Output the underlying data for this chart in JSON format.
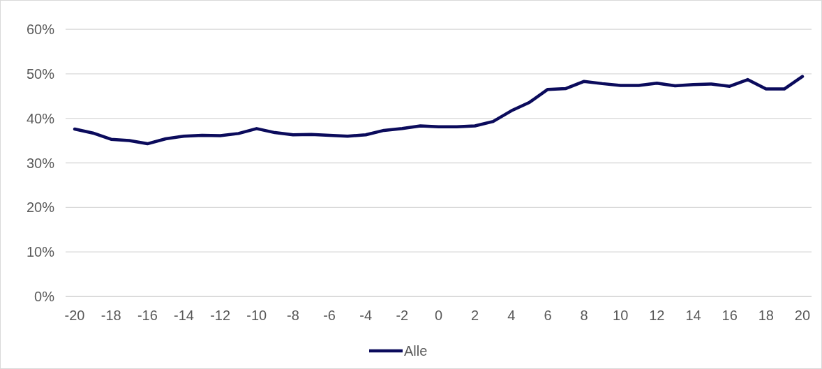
{
  "chart_data": {
    "type": "line",
    "x": [
      -20,
      -19,
      -18,
      -17,
      -16,
      -15,
      -14,
      -13,
      -12,
      -11,
      -10,
      -9,
      -8,
      -7,
      -6,
      -5,
      -4,
      -3,
      -2,
      -1,
      0,
      1,
      2,
      3,
      4,
      5,
      6,
      7,
      8,
      9,
      10,
      11,
      12,
      13,
      14,
      15,
      16,
      17,
      18,
      19,
      20
    ],
    "series": [
      {
        "name": "Alle",
        "color": "#0b0b5c",
        "values": [
          37.6,
          36.7,
          35.3,
          35.0,
          34.3,
          35.4,
          36.0,
          36.2,
          36.1,
          36.6,
          37.7,
          36.8,
          36.3,
          36.4,
          36.2,
          36.0,
          36.3,
          37.3,
          37.7,
          38.3,
          38.1,
          38.1,
          38.3,
          39.3,
          41.7,
          43.6,
          46.5,
          46.7,
          48.3,
          47.8,
          47.4,
          47.4,
          47.9,
          47.3,
          47.6,
          47.7,
          47.2,
          48.7,
          46.6,
          46.6,
          49.4
        ]
      }
    ],
    "xlim": [
      -20.5,
      20.5
    ],
    "xticks": [
      -20,
      -18,
      -16,
      -14,
      -12,
      -10,
      -8,
      -6,
      -4,
      -2,
      0,
      2,
      4,
      6,
      8,
      10,
      12,
      14,
      16,
      18,
      20
    ],
    "ylim": [
      0,
      60
    ],
    "yticks": [
      {
        "value": 0,
        "label": "0%"
      },
      {
        "value": 10,
        "label": "10%"
      },
      {
        "value": 20,
        "label": "20%"
      },
      {
        "value": 30,
        "label": "30%"
      },
      {
        "value": 40,
        "label": "40%"
      },
      {
        "value": 50,
        "label": "50%"
      },
      {
        "value": 60,
        "label": "60%"
      }
    ],
    "grid": "y",
    "legend": "bottom",
    "marker": "none",
    "line_style": "solid"
  }
}
